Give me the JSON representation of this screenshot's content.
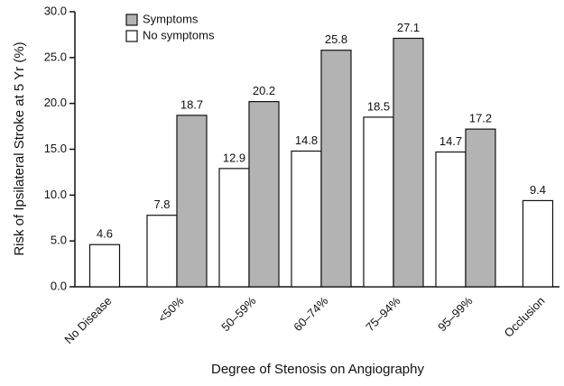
{
  "chart_data": {
    "type": "bar",
    "x_label": "Degree of Stenosis on Angiography",
    "y_label": "Risk of Ipsilateral Stroke at 5 Yr (%)",
    "categories": [
      "No Disease",
      "<50%",
      "50–59%",
      "60–74%",
      "75–94%",
      "95–99%",
      "Occlusion"
    ],
    "series": [
      {
        "name": "Symptoms",
        "color": "#b3b3b3",
        "values": [
          null,
          18.7,
          20.2,
          25.8,
          27.1,
          17.2,
          null
        ]
      },
      {
        "name": "No symptoms",
        "color": "#ffffff",
        "values": [
          4.6,
          7.8,
          12.9,
          14.8,
          18.5,
          14.7,
          9.4
        ]
      }
    ],
    "ylim": [
      0,
      30
    ],
    "yticks": [
      {
        "value": 0,
        "label": "0.0"
      },
      {
        "value": 5,
        "label": "5.0"
      },
      {
        "value": 10,
        "label": "10.0"
      },
      {
        "value": 15,
        "label": "15.0"
      },
      {
        "value": 20,
        "label": "20.0"
      },
      {
        "value": 25,
        "label": "25.0"
      },
      {
        "value": 30,
        "label": "30.0"
      }
    ],
    "legend": "upper left"
  }
}
